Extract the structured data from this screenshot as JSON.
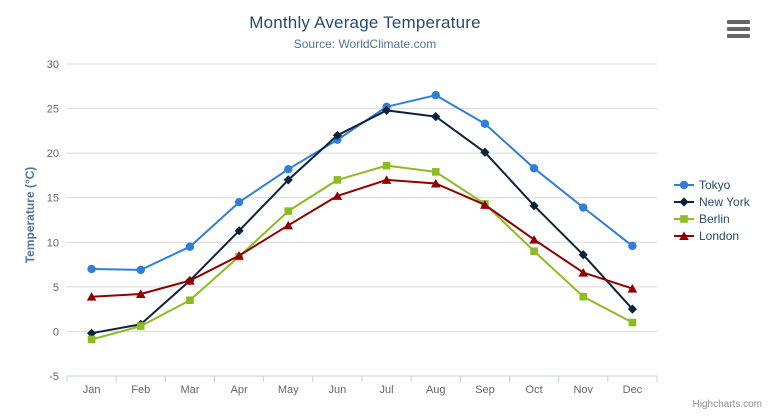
{
  "credits": "Highcharts.com",
  "export_menu": {
    "icon": "hamburger-menu-icon"
  },
  "colors": {
    "title": "#274b6d",
    "subtitle": "#4d759e",
    "axis_title": "#4d759e",
    "axis_label": "#666666",
    "grid": "#d8d8d8",
    "axis_line": "#c0d0e0",
    "tick": "#c0d0e0",
    "legend_text": "#274b6d",
    "credit": "#909090",
    "export_icon": "#666666",
    "background": "#ffffff"
  },
  "chart_data": {
    "type": "line",
    "title": "Monthly Average Temperature",
    "subtitle": "Source: WorldClimate.com",
    "xlabel": "",
    "ylabel": "Temperature (°C)",
    "categories": [
      "Jan",
      "Feb",
      "Mar",
      "Apr",
      "May",
      "Jun",
      "Jul",
      "Aug",
      "Sep",
      "Oct",
      "Nov",
      "Dec"
    ],
    "ylim": [
      -5,
      30
    ],
    "yticks": [
      -5,
      0,
      5,
      10,
      15,
      20,
      25,
      30
    ],
    "grid": true,
    "legend_position": "right",
    "series": [
      {
        "name": "Tokyo",
        "color": "#2f7ed8",
        "marker": "circle",
        "values": [
          7.0,
          6.9,
          9.5,
          14.5,
          18.2,
          21.5,
          25.2,
          26.5,
          23.3,
          18.3,
          13.9,
          9.6
        ]
      },
      {
        "name": "New York",
        "color": "#0d233a",
        "marker": "diamond",
        "values": [
          -0.2,
          0.8,
          5.7,
          11.3,
          17.0,
          22.0,
          24.8,
          24.1,
          20.1,
          14.1,
          8.6,
          2.5
        ]
      },
      {
        "name": "Berlin",
        "color": "#8bbc21",
        "marker": "square",
        "values": [
          -0.9,
          0.6,
          3.5,
          8.4,
          13.5,
          17.0,
          18.6,
          17.9,
          14.3,
          9.0,
          3.9,
          1.0
        ]
      },
      {
        "name": "London",
        "color": "#910000",
        "marker": "triangle",
        "values": [
          3.9,
          4.2,
          5.7,
          8.5,
          11.9,
          15.2,
          17.0,
          16.6,
          14.2,
          10.3,
          6.6,
          4.8
        ]
      }
    ]
  }
}
